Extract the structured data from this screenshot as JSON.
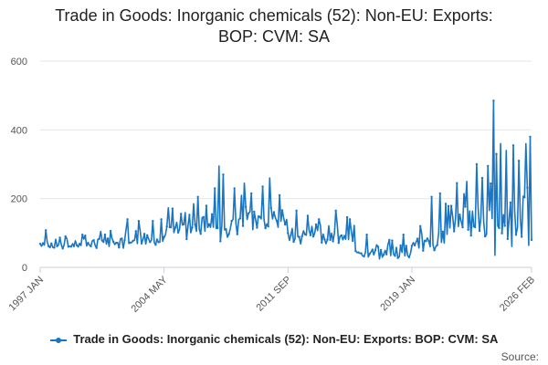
{
  "chart_data": {
    "type": "line",
    "title_line1": "Trade in Goods: Inorganic chemicals (52): Non-EU: Exports:",
    "title_line2": "BOP: CVM: SA",
    "xlabel": "",
    "ylabel": "",
    "ylim": [
      0,
      600
    ],
    "yticks": [
      "0",
      "200",
      "400",
      "600"
    ],
    "xticks": [
      {
        "label": "1997 JAN",
        "index": 0
      },
      {
        "label": "2004 MAY",
        "index": 88
      },
      {
        "label": "2011 SEP",
        "index": 176
      },
      {
        "label": "2019 JAN",
        "index": 264
      },
      {
        "label": "2026 FEB",
        "index": 349
      }
    ],
    "series_name": "Trade in Goods: Inorganic chemicals (52): Non-EU: Exports: BOP: CVM: SA",
    "series_color": "#1a76c2",
    "grid": true,
    "legend": "bottom-center",
    "source_label": "Source:",
    "segments": [
      {
        "from": 0,
        "to": 40,
        "base": 70,
        "amp": 25,
        "spikes": [
          [
            4,
            108
          ],
          [
            18,
            90
          ],
          [
            30,
            95
          ]
        ]
      },
      {
        "from": 40,
        "to": 88,
        "base": 85,
        "amp": 35,
        "spikes": [
          [
            62,
            140
          ],
          [
            70,
            135
          ],
          [
            80,
            135
          ],
          [
            86,
            140
          ]
        ]
      },
      {
        "from": 88,
        "to": 140,
        "base": 130,
        "amp": 70,
        "spikes": [
          [
            112,
            205
          ],
          [
            124,
            230
          ],
          [
            127,
            295
          ],
          [
            130,
            270
          ],
          [
            138,
            230
          ]
        ]
      },
      {
        "from": 140,
        "to": 176,
        "base": 150,
        "amp": 70,
        "spikes": [
          [
            145,
            245
          ],
          [
            150,
            215
          ],
          [
            158,
            235
          ],
          [
            163,
            260
          ],
          [
            170,
            210
          ]
        ]
      },
      {
        "from": 176,
        "to": 224,
        "base": 100,
        "amp": 55,
        "spikes": [
          [
            182,
            165
          ],
          [
            190,
            150
          ],
          [
            198,
            140
          ],
          [
            210,
            165
          ],
          [
            220,
            140
          ]
        ]
      },
      {
        "from": 224,
        "to": 264,
        "base": 45,
        "amp": 35,
        "spikes": [
          [
            232,
            95
          ],
          [
            240,
            60
          ],
          [
            248,
            80
          ],
          [
            258,
            95
          ]
        ]
      },
      {
        "from": 264,
        "to": 290,
        "base": 80,
        "amp": 45,
        "spikes": [
          [
            270,
            120
          ],
          [
            278,
            205
          ],
          [
            284,
            215
          ],
          [
            288,
            185
          ]
        ]
      },
      {
        "from": 290,
        "to": 320,
        "base": 140,
        "amp": 100,
        "spikes": [
          [
            296,
            245
          ],
          [
            303,
            250
          ],
          [
            310,
            300
          ],
          [
            314,
            260
          ],
          [
            318,
            295
          ]
        ]
      },
      {
        "from": 320,
        "to": 349,
        "base": 150,
        "amp": 140,
        "spikes": [
          [
            322,
            485
          ],
          [
            324,
            330
          ],
          [
            327,
            360
          ],
          [
            331,
            340
          ],
          [
            336,
            355
          ],
          [
            340,
            310
          ],
          [
            345,
            360
          ],
          [
            348,
            380
          ]
        ]
      }
    ],
    "last_value": 80
  }
}
